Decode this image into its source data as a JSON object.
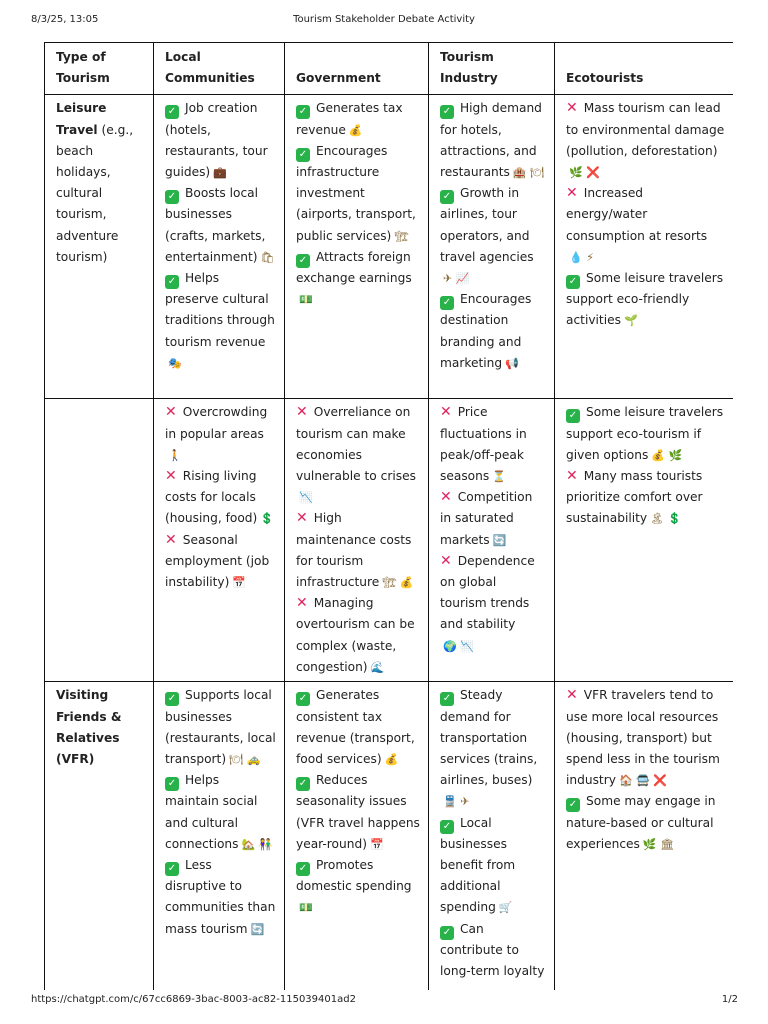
{
  "print_header": {
    "date": "8/3/25, 13:05",
    "title": "Tourism Stakeholder Debate Activity"
  },
  "print_footer": {
    "url": "https://chatgpt.com/c/67cc6869-3bac-8003-ac82-115039401ad2",
    "page": "1/2"
  },
  "table": {
    "headers": [
      "Type of Tourism",
      "Local Communities",
      "Government",
      "Tourism Industry",
      "Ecotourists"
    ],
    "rows": [
      {
        "type_bold": "Leisure Travel",
        "type_rest": " (e.g., beach holidays, cultural tourism, adventure tourism)",
        "cells": [
          [
            {
              "mark": "check",
              "text": "Job creation (hotels, restaurants, tour guides)",
              "icon": "💼"
            },
            {
              "mark": "check",
              "text": "Boosts local businesses (crafts, markets, entertainment)",
              "icon": "🛍"
            },
            {
              "mark": "check",
              "text": "Helps preserve cultural traditions through tourism revenue",
              "icon": "🎭"
            }
          ],
          [
            {
              "mark": "check",
              "text": "Generates tax revenue",
              "icon": "💰"
            },
            {
              "mark": "check",
              "text": "Encourages infrastructure investment (airports, transport, public services)",
              "icon": "🏗"
            },
            {
              "mark": "check",
              "text": "Attracts foreign exchange earnings",
              "icon": "💵"
            }
          ],
          [
            {
              "mark": "check",
              "text": "High demand for hotels, attractions, and restaurants",
              "icon": "🏨 🍽"
            },
            {
              "mark": "check",
              "text": "Growth in airlines, tour operators, and travel agencies",
              "icon": "✈ 📈"
            },
            {
              "mark": "check",
              "text": "Encourages destination branding and marketing",
              "icon": "📢"
            }
          ],
          [
            {
              "mark": "cross",
              "text": "Mass tourism can lead to environmental damage (pollution, deforestation)",
              "icon": "🌿 ❌"
            },
            {
              "mark": "cross",
              "text": "Increased energy/water consumption at resorts",
              "icon": "💧 ⚡"
            },
            {
              "mark": "check",
              "text": "Some leisure travelers support eco-friendly activities",
              "icon": "🌱"
            }
          ]
        ]
      },
      {
        "type_bold": "",
        "type_rest": "",
        "cells": [
          [
            {
              "mark": "cross",
              "text": "Overcrowding in popular areas",
              "icon": "🚶"
            },
            {
              "mark": "cross",
              "text": "Rising living costs for locals (housing, food)",
              "icon": "💲"
            },
            {
              "mark": "cross",
              "text": "Seasonal employment (job instability)",
              "icon": "📅"
            }
          ],
          [
            {
              "mark": "cross",
              "text": "Overreliance on tourism can make economies vulnerable to crises",
              "icon": "📉"
            },
            {
              "mark": "cross",
              "text": "High maintenance costs for tourism infrastructure",
              "icon": "🏗 💰"
            },
            {
              "mark": "cross",
              "text": "Managing overtourism can be complex (waste, congestion)",
              "icon": "🌊"
            }
          ],
          [
            {
              "mark": "cross",
              "text": "Price fluctuations in peak/off-peak seasons",
              "icon": "⏳"
            },
            {
              "mark": "cross",
              "text": "Competition in saturated markets",
              "icon": "🔄"
            },
            {
              "mark": "cross",
              "text": "Dependence on global tourism trends and stability",
              "icon": "🌍 📉"
            }
          ],
          [
            {
              "mark": "check",
              "text": "Some leisure travelers support eco-tourism if given options",
              "icon": "💰 🌿"
            },
            {
              "mark": "cross",
              "text": "Many mass tourists prioritize comfort over sustainability",
              "icon": "🏝 💲"
            }
          ]
        ]
      },
      {
        "type_bold": "Visiting Friends & Relatives (VFR)",
        "type_rest": "",
        "cells": [
          [
            {
              "mark": "check",
              "text": "Supports local businesses (restaurants, local transport)",
              "icon": "🍽 🚕"
            },
            {
              "mark": "check",
              "text": "Helps maintain social and cultural connections",
              "icon": "🏡 👫"
            },
            {
              "mark": "check",
              "text": "Less disruptive to communities than mass tourism",
              "icon": "🔄"
            }
          ],
          [
            {
              "mark": "check",
              "text": "Generates consistent tax revenue (transport, food services)",
              "icon": "💰"
            },
            {
              "mark": "check",
              "text": "Reduces seasonality issues (VFR travel happens year-round)",
              "icon": "📅"
            },
            {
              "mark": "check",
              "text": "Promotes domestic spending",
              "icon": "💵"
            }
          ],
          [
            {
              "mark": "check",
              "text": "Steady demand for transportation services (trains, airlines, buses)",
              "icon": "🚆 ✈"
            },
            {
              "mark": "check",
              "text": "Local businesses benefit from additional spending",
              "icon": "🛒"
            },
            {
              "mark": "check",
              "text": "Can contribute to long-term loyalty",
              "icon": ""
            }
          ],
          [
            {
              "mark": "cross",
              "text": "VFR travelers tend to use more local resources (housing, transport) but spend less in the tourism industry",
              "icon": "🏠 🚍 ❌"
            },
            {
              "mark": "check",
              "text": "Some may engage in nature-based or cultural experiences",
              "icon": "🌿 🏛"
            }
          ]
        ]
      }
    ]
  }
}
